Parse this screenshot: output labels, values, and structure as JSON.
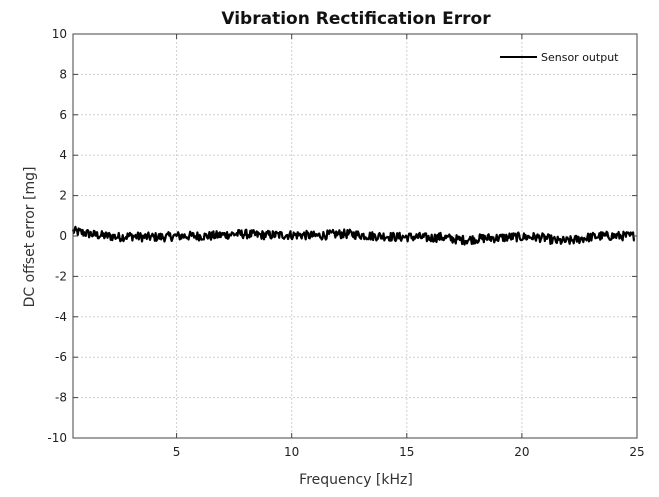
{
  "chart_data": {
    "type": "line",
    "title": "Vibration Rectification Error",
    "xlabel": "Frequency [kHz]",
    "ylabel": "DC offset error [mg]",
    "xlim": [
      0.5,
      25
    ],
    "ylim": [
      -10,
      10
    ],
    "xticks": [
      5,
      10,
      15,
      20,
      25
    ],
    "yticks": [
      -10,
      -8,
      -6,
      -4,
      -2,
      0,
      2,
      4,
      6,
      8,
      10
    ],
    "grid": true,
    "legend": {
      "position": "top-right",
      "entries": [
        "Sensor output"
      ]
    },
    "series": [
      {
        "name": "Sensor output",
        "color": "#000000",
        "x": [
          0.5,
          1,
          1.5,
          2,
          2.5,
          3,
          3.5,
          4,
          4.5,
          5,
          5.5,
          6,
          6.5,
          7,
          7.5,
          8,
          8.5,
          9,
          9.5,
          10,
          10.5,
          11,
          11.5,
          12,
          12.5,
          13,
          13.5,
          14,
          14.5,
          15,
          15.5,
          16,
          16.5,
          17,
          17.5,
          18,
          18.5,
          19,
          19.5,
          20,
          20.5,
          21,
          21.5,
          22,
          22.5,
          23,
          23.5,
          24,
          24.5,
          24.9
        ],
        "y": [
          0.25,
          0.15,
          0.05,
          0.0,
          -0.05,
          0.0,
          -0.05,
          -0.05,
          -0.05,
          0.0,
          0.0,
          0.0,
          0.0,
          0.05,
          0.1,
          0.1,
          0.05,
          0.05,
          0.05,
          0.05,
          0.05,
          0.0,
          0.05,
          0.1,
          0.1,
          0.05,
          0.0,
          0.0,
          -0.05,
          -0.05,
          -0.05,
          -0.1,
          -0.05,
          -0.15,
          -0.2,
          -0.15,
          -0.1,
          -0.1,
          -0.05,
          -0.05,
          -0.05,
          -0.1,
          -0.25,
          -0.25,
          -0.15,
          -0.05,
          0.0,
          0.0,
          0.0,
          0.0
        ]
      }
    ]
  }
}
